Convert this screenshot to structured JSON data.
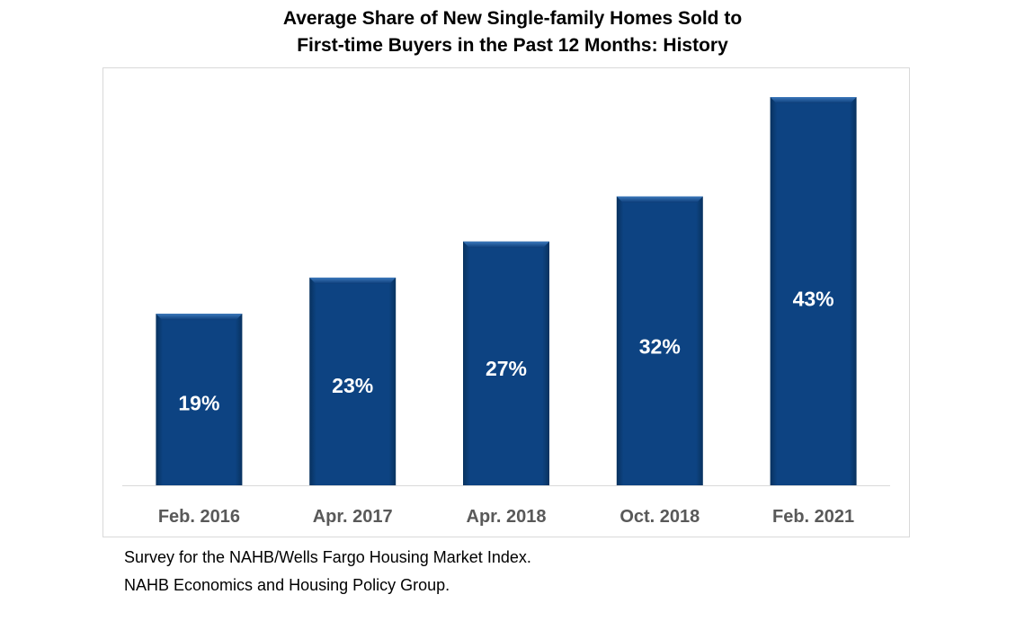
{
  "chart_data": {
    "type": "bar",
    "title": [
      "Average Share of New Single-family Homes Sold to",
      "First-time Buyers in the Past 12 Months: History"
    ],
    "categories": [
      "Feb. 2016",
      "Apr. 2017",
      "Apr. 2018",
      "Oct. 2018",
      "Feb. 2021"
    ],
    "values": [
      19,
      23,
      27,
      32,
      43
    ],
    "data_labels": [
      "19%",
      "23%",
      "27%",
      "32%",
      "43%"
    ],
    "xlabel": "",
    "ylabel": "",
    "ylim": [
      0,
      43
    ],
    "grid": false,
    "legend": "none",
    "bar_color": "#0b3c78",
    "bar_highlight": "#2e6aad",
    "axis_line_color": "#d9d9d9",
    "tick_label_color": "#595959",
    "data_label_color": "#ffffff"
  },
  "footnotes": [
    "Survey for the NAHB/Wells Fargo Housing Market Index.",
    "NAHB Economics and Housing Policy Group."
  ]
}
